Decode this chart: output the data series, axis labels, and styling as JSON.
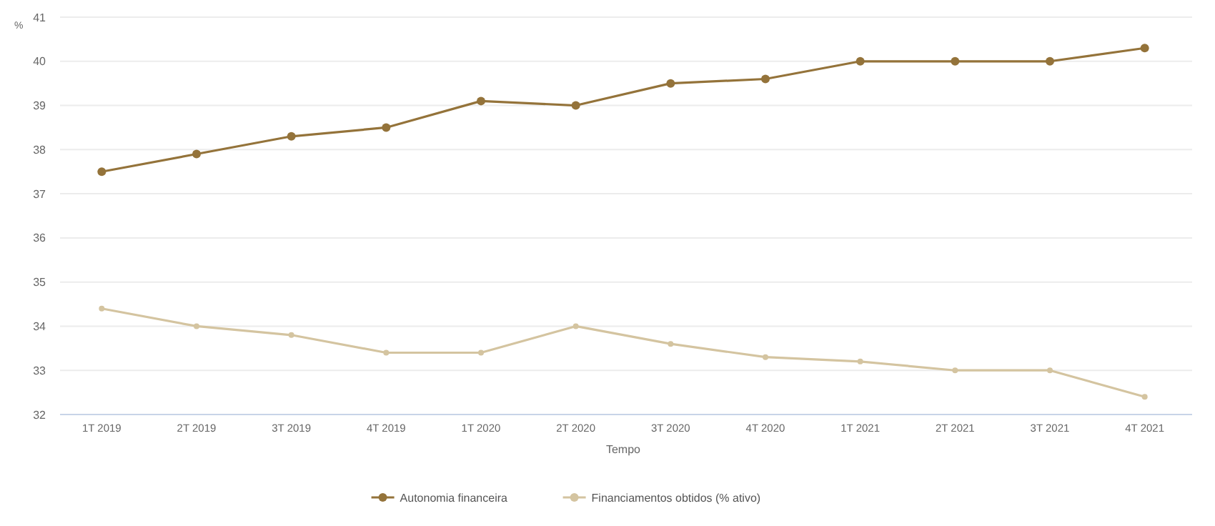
{
  "chart_data": {
    "type": "line",
    "xlabel": "Tempo",
    "ylabel": "%",
    "categories": [
      "1T 2019",
      "2T 2019",
      "3T 2019",
      "4T 2019",
      "1T 2020",
      "2T 2020",
      "3T 2020",
      "4T 2020",
      "1T 2021",
      "2T 2021",
      "3T 2021",
      "4T 2021"
    ],
    "series": [
      {
        "name": "Autonomia financeira",
        "color": "#94733a",
        "values": [
          37.5,
          37.9,
          38.3,
          38.5,
          39.1,
          39.0,
          39.5,
          39.6,
          40.0,
          40.0,
          40.0,
          40.3
        ]
      },
      {
        "name": "Financiamentos obtidos (% ativo)",
        "color": "#d4c4a0",
        "values": [
          34.4,
          34.0,
          33.8,
          33.4,
          33.4,
          34.0,
          33.6,
          33.3,
          33.2,
          33.0,
          33.0,
          32.4
        ]
      }
    ],
    "ylim": [
      32,
      41
    ],
    "yticks": [
      32,
      33,
      34,
      35,
      36,
      37,
      38,
      39,
      40,
      41
    ],
    "grid": "y",
    "legend": "bottom",
    "marker": "circle",
    "line_style": "solid"
  }
}
